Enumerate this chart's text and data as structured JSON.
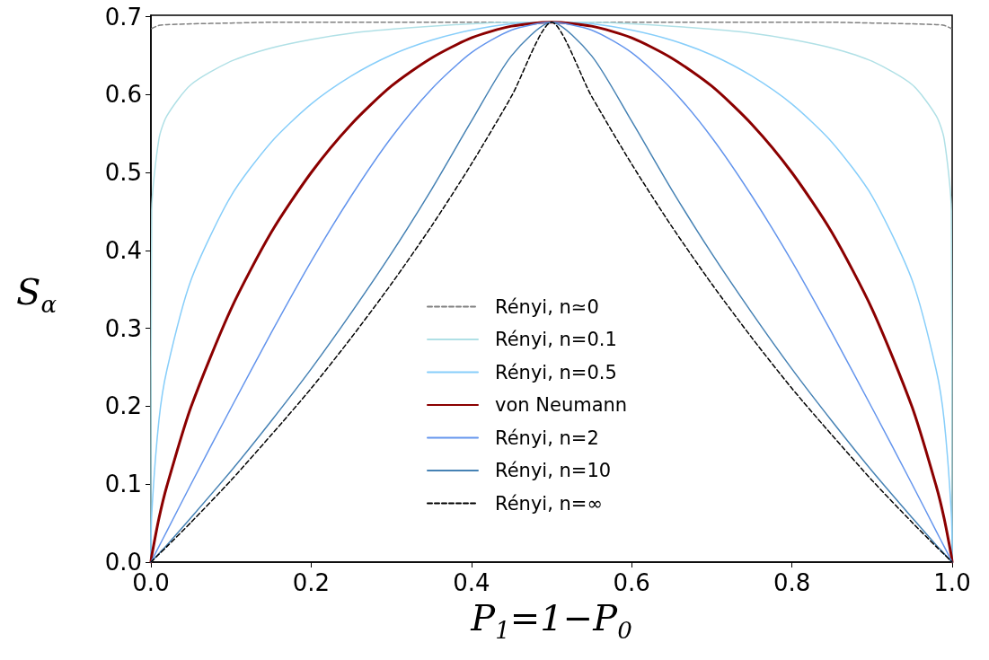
{
  "chart_data": {
    "type": "line",
    "xlabel": "P$_{1}$=1−P$_{0}$",
    "ylabel": "S$_{α}$",
    "x": [
      0,
      0.001,
      0.01,
      0.02,
      0.05,
      0.1,
      0.15,
      0.2,
      0.25,
      0.3,
      0.35,
      0.4,
      0.45,
      0.5,
      0.55,
      0.6,
      0.65,
      0.7,
      0.75,
      0.8,
      0.85,
      0.9,
      0.95,
      0.98,
      0.99,
      0.999,
      1
    ],
    "xlim": [
      0,
      1
    ],
    "xticks": [
      {
        "value": 0,
        "label": "0.0"
      },
      0.2,
      0.4,
      0.6,
      0.8,
      {
        "value": 1,
        "label": "1.0"
      }
    ],
    "ylim": [
      0,
      0.702
    ],
    "yticks": [
      {
        "value": 0,
        "label": "0.0"
      },
      0.1,
      0.2,
      0.3,
      0.4,
      0.5,
      0.6,
      0.7
    ],
    "grid": false,
    "legend": "bottom",
    "marker": "none",
    "series": [
      {
        "name": "Rényi, n≃0",
        "color": "#808080",
        "line_style": "dashed",
        "values": [
          null,
          0.685,
          0.689,
          0.69,
          0.691,
          0.692,
          0.693,
          0.693,
          0.693,
          0.693,
          0.693,
          0.693,
          0.693,
          0.693,
          0.693,
          0.693,
          0.693,
          0.693,
          0.693,
          0.693,
          0.693,
          0.692,
          0.691,
          0.69,
          0.689,
          0.685,
          null
        ]
      },
      {
        "name": "Rényi, n=0.1",
        "color": "#b0e0e6",
        "line_style": "solid",
        "values": [
          0,
          0.451,
          0.543,
          0.573,
          0.613,
          0.643,
          0.66,
          0.671,
          0.679,
          0.684,
          0.688,
          0.691,
          0.693,
          0.693,
          0.693,
          0.691,
          0.688,
          0.684,
          0.679,
          0.671,
          0.66,
          0.643,
          0.613,
          0.573,
          0.543,
          0.451,
          0
        ]
      },
      {
        "name": "Rényi, n=0.5",
        "color": "#87cefa",
        "line_style": "solid",
        "values": [
          0,
          0.061,
          0.182,
          0.247,
          0.362,
          0.47,
          0.539,
          0.588,
          0.624,
          0.651,
          0.67,
          0.683,
          0.691,
          0.693,
          0.691,
          0.683,
          0.67,
          0.651,
          0.624,
          0.588,
          0.539,
          0.47,
          0.362,
          0.247,
          0.182,
          0.061,
          0
        ]
      },
      {
        "name": "von Neumann",
        "color": "#8b0000",
        "line_style": "solid",
        "values": [
          0,
          0.008,
          0.056,
          0.098,
          0.199,
          0.325,
          0.423,
          0.5,
          0.562,
          0.611,
          0.647,
          0.673,
          0.688,
          0.693,
          0.688,
          0.673,
          0.647,
          0.611,
          0.562,
          0.5,
          0.423,
          0.325,
          0.199,
          0.098,
          0.056,
          0.008,
          0
        ]
      },
      {
        "name": "Rényi, n=2",
        "color": "#6495ed",
        "line_style": "solid",
        "values": [
          0,
          0.002,
          0.02,
          0.04,
          0.1,
          0.198,
          0.294,
          0.386,
          0.47,
          0.545,
          0.607,
          0.654,
          0.683,
          0.693,
          0.683,
          0.654,
          0.607,
          0.545,
          0.47,
          0.386,
          0.294,
          0.198,
          0.1,
          0.04,
          0.02,
          0.002,
          0
        ]
      },
      {
        "name": "Rényi, n=10",
        "color": "#4682b4",
        "line_style": "solid",
        "values": [
          0,
          0.001,
          0.011,
          0.022,
          0.057,
          0.117,
          0.181,
          0.248,
          0.32,
          0.396,
          0.478,
          0.566,
          0.65,
          0.693,
          0.65,
          0.566,
          0.478,
          0.396,
          0.32,
          0.248,
          0.181,
          0.117,
          0.057,
          0.022,
          0.011,
          0.001,
          0
        ]
      },
      {
        "name": "Rényi, n=∞",
        "color": "#000000",
        "line_style": "dashed",
        "values": [
          0,
          0.001,
          0.01,
          0.02,
          0.051,
          0.105,
          0.163,
          0.223,
          0.288,
          0.357,
          0.431,
          0.511,
          0.598,
          0.693,
          0.598,
          0.511,
          0.431,
          0.357,
          0.288,
          0.223,
          0.163,
          0.105,
          0.051,
          0.02,
          0.01,
          0.001,
          0
        ]
      }
    ]
  }
}
